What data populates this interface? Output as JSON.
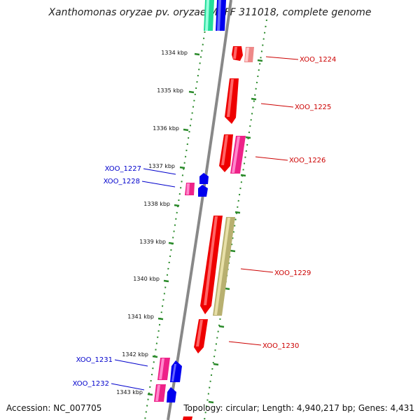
{
  "title": "Xanthomonas oryzae pv. oryzae MAFF 311018, complete genome",
  "footer": {
    "accession": "Accession: NC_007705",
    "summary": "Topology: circular; Length: 4,940,217 bp; Genes: 4,431"
  },
  "kbp_labels": [
    "1334 kbp",
    "1335 kbp",
    "1336 kbp",
    "1337 kbp",
    "1338 kbp",
    "1339 kbp",
    "1340 kbp",
    "1341 kbp",
    "1342 kbp",
    "1343 kbp"
  ],
  "gene_labels": {
    "right": [
      "XOO_1224",
      "XOO_1225",
      "XOO_1226",
      "XOO_1229",
      "XOO_1230"
    ],
    "left": [
      "XOO_1227",
      "XOO_1228",
      "XOO_1231",
      "XOO_1232"
    ]
  },
  "colors": {
    "label_right": "#cc0000",
    "label_left": "#0000cc",
    "tick": "#2a8a2a",
    "backbone": "#888888",
    "red": "#ee0000",
    "pink": "#ee2288",
    "blue": "#0000ee",
    "olive": "#b8b070",
    "salmon": "#ee8888",
    "teal": "#22dd99"
  }
}
